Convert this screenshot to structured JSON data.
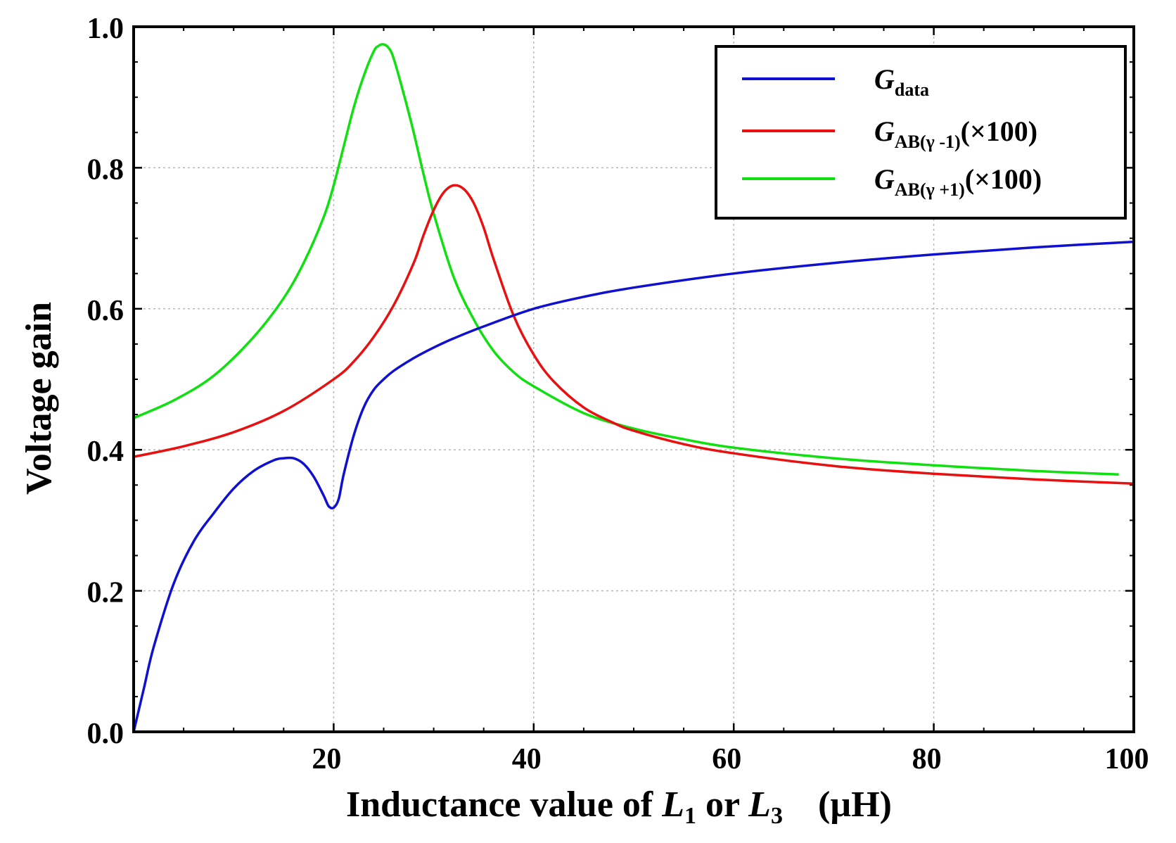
{
  "chart_data": {
    "type": "line",
    "xlabel": {
      "prefix": "Inductance value of ",
      "var1": "L",
      "sub1": "1",
      "mid": " or ",
      "var2": "L",
      "sub2": "3",
      "unit": "(µH)"
    },
    "ylabel": "Voltage gain",
    "xlim": [
      0,
      100
    ],
    "ylim": [
      0,
      1.0
    ],
    "xticks": [
      20,
      40,
      60,
      80,
      100
    ],
    "xtick_labels": [
      "20",
      "40",
      "60",
      "80",
      "100"
    ],
    "yticks": [
      0.0,
      0.2,
      0.4,
      0.6,
      0.8,
      1.0
    ],
    "ytick_labels": [
      "0.0",
      "0.2",
      "0.4",
      "0.6",
      "0.8",
      "1.0"
    ],
    "grid": true,
    "legend_position": "top-right",
    "series": [
      {
        "name": "G_data",
        "label_main": "G",
        "label_sub": "data",
        "label_suffix": "",
        "color": "#1010d0",
        "x": [
          0,
          1,
          2,
          4,
          6,
          8,
          10,
          12,
          14,
          15,
          16,
          17,
          18,
          19,
          19.5,
          20,
          20.5,
          21,
          22,
          23,
          24,
          25,
          26,
          28,
          30,
          32,
          35,
          40,
          45,
          50,
          60,
          70,
          80,
          90,
          100
        ],
        "y": [
          0.0,
          0.06,
          0.12,
          0.21,
          0.27,
          0.31,
          0.345,
          0.37,
          0.385,
          0.388,
          0.388,
          0.38,
          0.362,
          0.335,
          0.32,
          0.318,
          0.33,
          0.365,
          0.42,
          0.46,
          0.485,
          0.5,
          0.512,
          0.53,
          0.545,
          0.558,
          0.575,
          0.6,
          0.617,
          0.63,
          0.65,
          0.665,
          0.677,
          0.687,
          0.695
        ]
      },
      {
        "name": "G_AB(gamma-1)(x100)",
        "label_main": "G",
        "label_sub": "AB(γ -1)",
        "label_suffix": "(×100)",
        "color": "#e81010",
        "x": [
          0,
          5,
          10,
          15,
          20,
          22,
          24,
          26,
          28,
          29,
          30,
          31,
          32,
          33,
          34,
          35,
          36,
          38,
          40,
          42,
          45,
          48,
          50,
          55,
          60,
          70,
          80,
          90,
          100
        ],
        "y": [
          0.39,
          0.405,
          0.425,
          0.455,
          0.5,
          0.525,
          0.56,
          0.605,
          0.665,
          0.705,
          0.74,
          0.765,
          0.775,
          0.77,
          0.75,
          0.715,
          0.67,
          0.59,
          0.535,
          0.497,
          0.46,
          0.438,
          0.427,
          0.408,
          0.395,
          0.377,
          0.366,
          0.358,
          0.352
        ]
      },
      {
        "name": "G_AB(gamma+1)(x100)",
        "label_main": "G",
        "label_sub": "AB(γ +1)",
        "label_suffix": "(×100)",
        "color": "#10e010",
        "x": [
          0,
          4,
          8,
          12,
          15,
          17,
          19,
          20,
          21,
          22,
          23,
          24,
          24.5,
          25,
          25.5,
          26,
          27,
          28,
          29,
          30,
          32,
          34,
          36,
          38,
          40,
          45,
          50,
          55,
          60,
          70,
          80,
          90,
          98.5
        ],
        "y": [
          0.445,
          0.47,
          0.505,
          0.56,
          0.615,
          0.665,
          0.73,
          0.775,
          0.83,
          0.885,
          0.93,
          0.965,
          0.973,
          0.975,
          0.97,
          0.955,
          0.905,
          0.85,
          0.79,
          0.735,
          0.645,
          0.585,
          0.54,
          0.51,
          0.49,
          0.452,
          0.43,
          0.415,
          0.403,
          0.388,
          0.378,
          0.37,
          0.365
        ]
      }
    ]
  }
}
